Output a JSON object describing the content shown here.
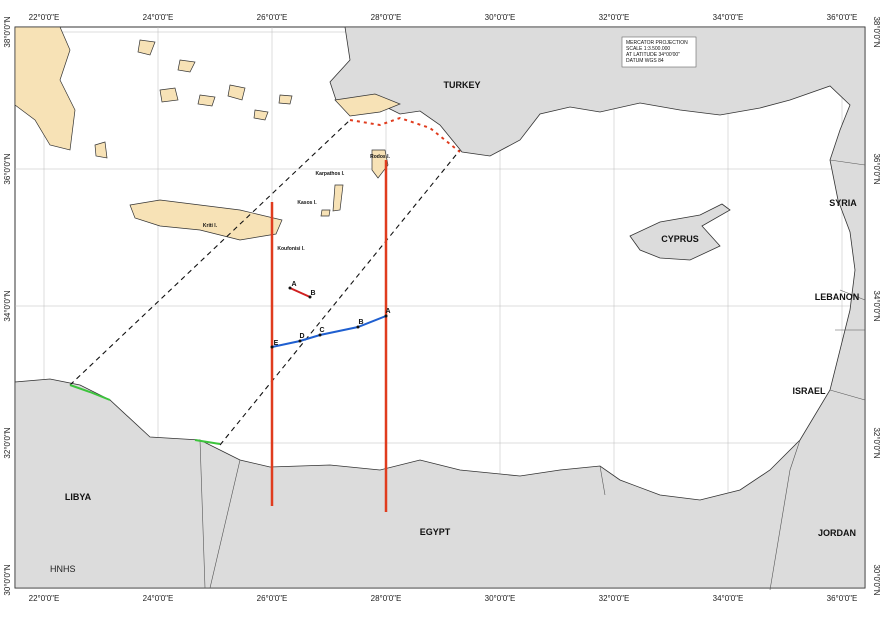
{
  "map": {
    "longitudes": [
      {
        "value": 22,
        "label": "22°0'0\"E"
      },
      {
        "value": 24,
        "label": "24°0'0\"E"
      },
      {
        "value": 26,
        "label": "26°0'0\"E"
      },
      {
        "value": 28,
        "label": "28°0'0\"E"
      },
      {
        "value": 30,
        "label": "30°0'0\"E"
      },
      {
        "value": 32,
        "label": "32°0'0\"E"
      },
      {
        "value": 34,
        "label": "34°0'0\"E"
      },
      {
        "value": 36,
        "label": "36°0'0\"E"
      }
    ],
    "latitudes": [
      {
        "value": 38,
        "label": "38°0'0\"N"
      },
      {
        "value": 36,
        "label": "36°0'0\"N"
      },
      {
        "value": 34,
        "label": "34°0'0\"N"
      },
      {
        "value": 32,
        "label": "32°0'0\"N"
      },
      {
        "value": 30,
        "label": "30°0'0\"N"
      }
    ],
    "legend": [
      "MERCATOR PROJECTION",
      "SCALE 1:3.500.000",
      "AT LATITUDE 34°00'00\"",
      "DATUM WGS 84"
    ],
    "countries": [
      "TURKEY",
      "CYPRUS",
      "SYRIA",
      "LEBANON",
      "ISRAEL",
      "JORDAN",
      "EGYPT",
      "LIBYA"
    ],
    "islands": [
      "Kriti I.",
      "Karpathos I.",
      "Kasos I.",
      "Koufonisi I.",
      "Rodos I."
    ],
    "section_1": [
      "A",
      "B"
    ],
    "section_2": [
      "A",
      "B",
      "C",
      "D",
      "E"
    ],
    "credit": "HNHS"
  }
}
